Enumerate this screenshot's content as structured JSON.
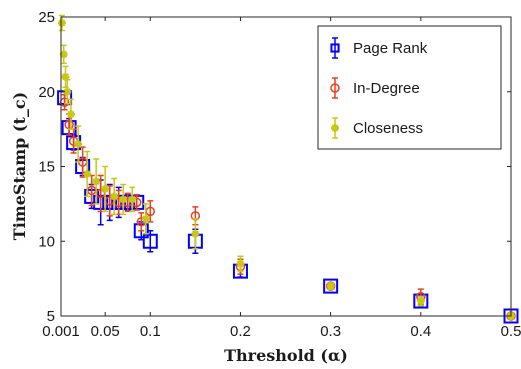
{
  "chart_data": {
    "type": "scatter",
    "xlabel": "Threshold (α)",
    "ylabel": "TimeStamp (t_c)",
    "xlim": [
      0.001,
      0.5
    ],
    "ylim": [
      5,
      25
    ],
    "x_ticks": [
      {
        "v": 0.001,
        "label": "0.001"
      },
      {
        "v": 0.05,
        "label": "0.05"
      },
      {
        "v": 0.1,
        "label": "0.1"
      },
      {
        "v": 0.2,
        "label": "0.2"
      },
      {
        "v": 0.3,
        "label": "0.3"
      },
      {
        "v": 0.4,
        "label": "0.4"
      },
      {
        "v": 0.5,
        "label": "0.5"
      }
    ],
    "y_ticks": [
      {
        "v": 5,
        "label": "5"
      },
      {
        "v": 10,
        "label": "10"
      },
      {
        "v": 15,
        "label": "15"
      },
      {
        "v": 20,
        "label": "20"
      },
      {
        "v": 25,
        "label": "25"
      }
    ],
    "grid": false,
    "legend_position": "top-right",
    "series": [
      {
        "name": "Page Rank",
        "color": "#0000ff",
        "marker": "square",
        "points": [
          {
            "x": 0.005,
            "y": 19.6,
            "err": 0.4
          },
          {
            "x": 0.01,
            "y": 17.6,
            "err": 0.6
          },
          {
            "x": 0.015,
            "y": 16.6,
            "err": 0.5
          },
          {
            "x": 0.025,
            "y": 15.0,
            "err": 0.6
          },
          {
            "x": 0.035,
            "y": 13.0,
            "err": 0.8
          },
          {
            "x": 0.045,
            "y": 12.6,
            "err": 1.5
          },
          {
            "x": 0.055,
            "y": 12.6,
            "err": 1.2
          },
          {
            "x": 0.065,
            "y": 12.6,
            "err": 1.0
          },
          {
            "x": 0.075,
            "y": 12.6,
            "err": 0.5
          },
          {
            "x": 0.085,
            "y": 12.6,
            "err": 0.5
          },
          {
            "x": 0.09,
            "y": 10.7,
            "err": 0.6
          },
          {
            "x": 0.1,
            "y": 10.0,
            "err": 0.7
          },
          {
            "x": 0.15,
            "y": 10.0,
            "err": 0.8
          },
          {
            "x": 0.2,
            "y": 8.0,
            "err": 0.4
          },
          {
            "x": 0.3,
            "y": 7.0,
            "err": 0.2
          },
          {
            "x": 0.4,
            "y": 6.0,
            "err": 0.3
          },
          {
            "x": 0.5,
            "y": 5.0,
            "err": 0.2
          }
        ]
      },
      {
        "name": "In-Degree",
        "color": "#e8411c",
        "marker": "circle",
        "points": [
          {
            "x": 0.005,
            "y": 19.3,
            "err": 0.5
          },
          {
            "x": 0.01,
            "y": 17.8,
            "err": 0.7
          },
          {
            "x": 0.015,
            "y": 16.7,
            "err": 0.8
          },
          {
            "x": 0.025,
            "y": 15.3,
            "err": 1.0
          },
          {
            "x": 0.035,
            "y": 13.4,
            "err": 1.0
          },
          {
            "x": 0.045,
            "y": 13.2,
            "err": 1.2
          },
          {
            "x": 0.055,
            "y": 12.7,
            "err": 1.0
          },
          {
            "x": 0.065,
            "y": 12.6,
            "err": 0.8
          },
          {
            "x": 0.075,
            "y": 12.6,
            "err": 0.6
          },
          {
            "x": 0.085,
            "y": 12.6,
            "err": 0.5
          },
          {
            "x": 0.09,
            "y": 11.3,
            "err": 0.6
          },
          {
            "x": 0.1,
            "y": 12.0,
            "err": 0.7
          },
          {
            "x": 0.15,
            "y": 11.7,
            "err": 0.6
          },
          {
            "x": 0.2,
            "y": 8.3,
            "err": 0.5
          },
          {
            "x": 0.3,
            "y": 7.0,
            "err": 0.2
          },
          {
            "x": 0.4,
            "y": 6.3,
            "err": 0.5
          },
          {
            "x": 0.5,
            "y": 5.0,
            "err": 0.2
          }
        ]
      },
      {
        "name": "Closeness",
        "color": "#c8c814",
        "marker": "star",
        "points": [
          {
            "x": 0.002,
            "y": 24.6,
            "err": 0.5
          },
          {
            "x": 0.004,
            "y": 22.5,
            "err": 0.6
          },
          {
            "x": 0.006,
            "y": 21.0,
            "err": 0.7
          },
          {
            "x": 0.008,
            "y": 20.0,
            "err": 0.8
          },
          {
            "x": 0.012,
            "y": 18.5,
            "err": 1.0
          },
          {
            "x": 0.02,
            "y": 16.5,
            "err": 1.2
          },
          {
            "x": 0.03,
            "y": 14.5,
            "err": 1.5
          },
          {
            "x": 0.04,
            "y": 14.0,
            "err": 1.5
          },
          {
            "x": 0.05,
            "y": 13.5,
            "err": 1.5
          },
          {
            "x": 0.06,
            "y": 13.0,
            "err": 1.2
          },
          {
            "x": 0.07,
            "y": 12.8,
            "err": 1.0
          },
          {
            "x": 0.08,
            "y": 12.8,
            "err": 0.8
          },
          {
            "x": 0.095,
            "y": 11.5,
            "err": 1.0
          },
          {
            "x": 0.15,
            "y": 10.5,
            "err": 1.0
          },
          {
            "x": 0.2,
            "y": 8.5,
            "err": 0.5
          },
          {
            "x": 0.3,
            "y": 7.0,
            "err": 0.2
          },
          {
            "x": 0.4,
            "y": 6.0,
            "err": 0.3
          },
          {
            "x": 0.5,
            "y": 5.0,
            "err": 0.2
          }
        ]
      }
    ]
  }
}
